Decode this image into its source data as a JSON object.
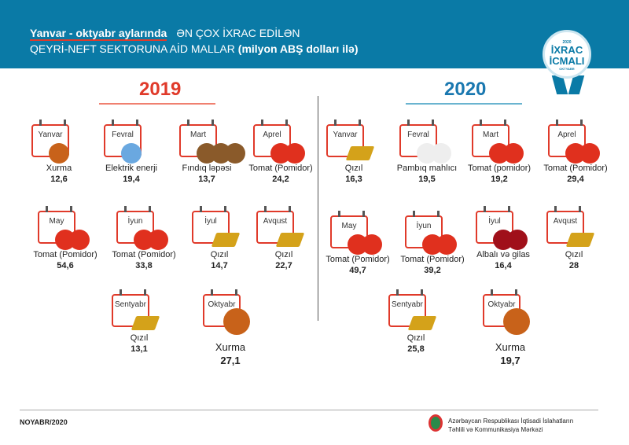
{
  "header": {
    "title_highlight": "Yanvar - oktyabr aylarında",
    "title_rest": "ƏN ÇOX İXRAC EDİLƏN",
    "subtitle": "QEYRİ-NEFT SEKTORUNA AİD MALLAR",
    "unit": "(milyon ABŞ dolları ilə)",
    "badge_year": "2020",
    "badge_line1": "İXRAC",
    "badge_line2": "İCMALI",
    "badge_month": "OKTYABR"
  },
  "colors": {
    "header": "#0a7aa6",
    "y2019": "#e03a2a",
    "y2020": "#1a78b0"
  },
  "y2019": {
    "year": "2019",
    "items": [
      {
        "month": "Yanvar",
        "product": "Xurma",
        "value": "12,6",
        "kind": "persimmon"
      },
      {
        "month": "Fevral",
        "product": "Elektrik enerji",
        "value": "19,4",
        "kind": "bulb"
      },
      {
        "month": "Mart",
        "product": "Fındıq ləpəsi",
        "value": "13,7",
        "kind": "hazelnut"
      },
      {
        "month": "Aprel",
        "product": "Tomat (Pomidor)",
        "value": "24,2",
        "kind": "tomato"
      },
      {
        "month": "May",
        "product": "Tomat (Pomidor)",
        "value": "54,6",
        "kind": "tomato"
      },
      {
        "month": "İyun",
        "product": "Tomat (Pomidor)",
        "value": "33,8",
        "kind": "tomato"
      },
      {
        "month": "İyul",
        "product": "Qızıl",
        "value": "14,7",
        "kind": "gold"
      },
      {
        "month": "Avqust",
        "product": "Qızıl",
        "value": "22,7",
        "kind": "gold"
      },
      {
        "month": "Sentyabr",
        "product": "Qızıl",
        "value": "13,1",
        "kind": "gold"
      },
      {
        "month": "Oktyabr",
        "product": "Xurma",
        "value": "27,1",
        "kind": "persimmon"
      }
    ]
  },
  "y2020": {
    "year": "2020",
    "items": [
      {
        "month": "Yanvar",
        "product": "Qızıl",
        "value": "16,3",
        "kind": "gold"
      },
      {
        "month": "Fevral",
        "product": "Pambıq mahlıcı",
        "value": "19,5",
        "kind": "cotton"
      },
      {
        "month": "Mart",
        "product": "Tomat (pomidor)",
        "value": "19,2",
        "kind": "tomato"
      },
      {
        "month": "Aprel",
        "product": "Tomat (Pomidor)",
        "value": "29,4",
        "kind": "tomato"
      },
      {
        "month": "May",
        "product": "Tomat (Pomidor)",
        "value": "49,7",
        "kind": "tomato"
      },
      {
        "month": "İyun",
        "product": "Tomat (Pomidor)",
        "value": "39,2",
        "kind": "tomato"
      },
      {
        "month": "İyul",
        "product": "Albalı və gilas",
        "value": "16,4",
        "kind": "cherry"
      },
      {
        "month": "Avqust",
        "product": "Qızıl",
        "value": "28",
        "kind": "gold"
      },
      {
        "month": "Sentyabr",
        "product": "Qızıl",
        "value": "25,8",
        "kind": "gold"
      },
      {
        "month": "Oktyabr",
        "product": "Xurma",
        "value": "19,7",
        "kind": "persimmon"
      }
    ]
  },
  "footer": {
    "date": "NOYABR/2020",
    "org_line1": "Azərbaycan Respublikası İqtisadi İslahatların",
    "org_line2": "Təhlili və Kommunikasiya Mərkəzi"
  }
}
